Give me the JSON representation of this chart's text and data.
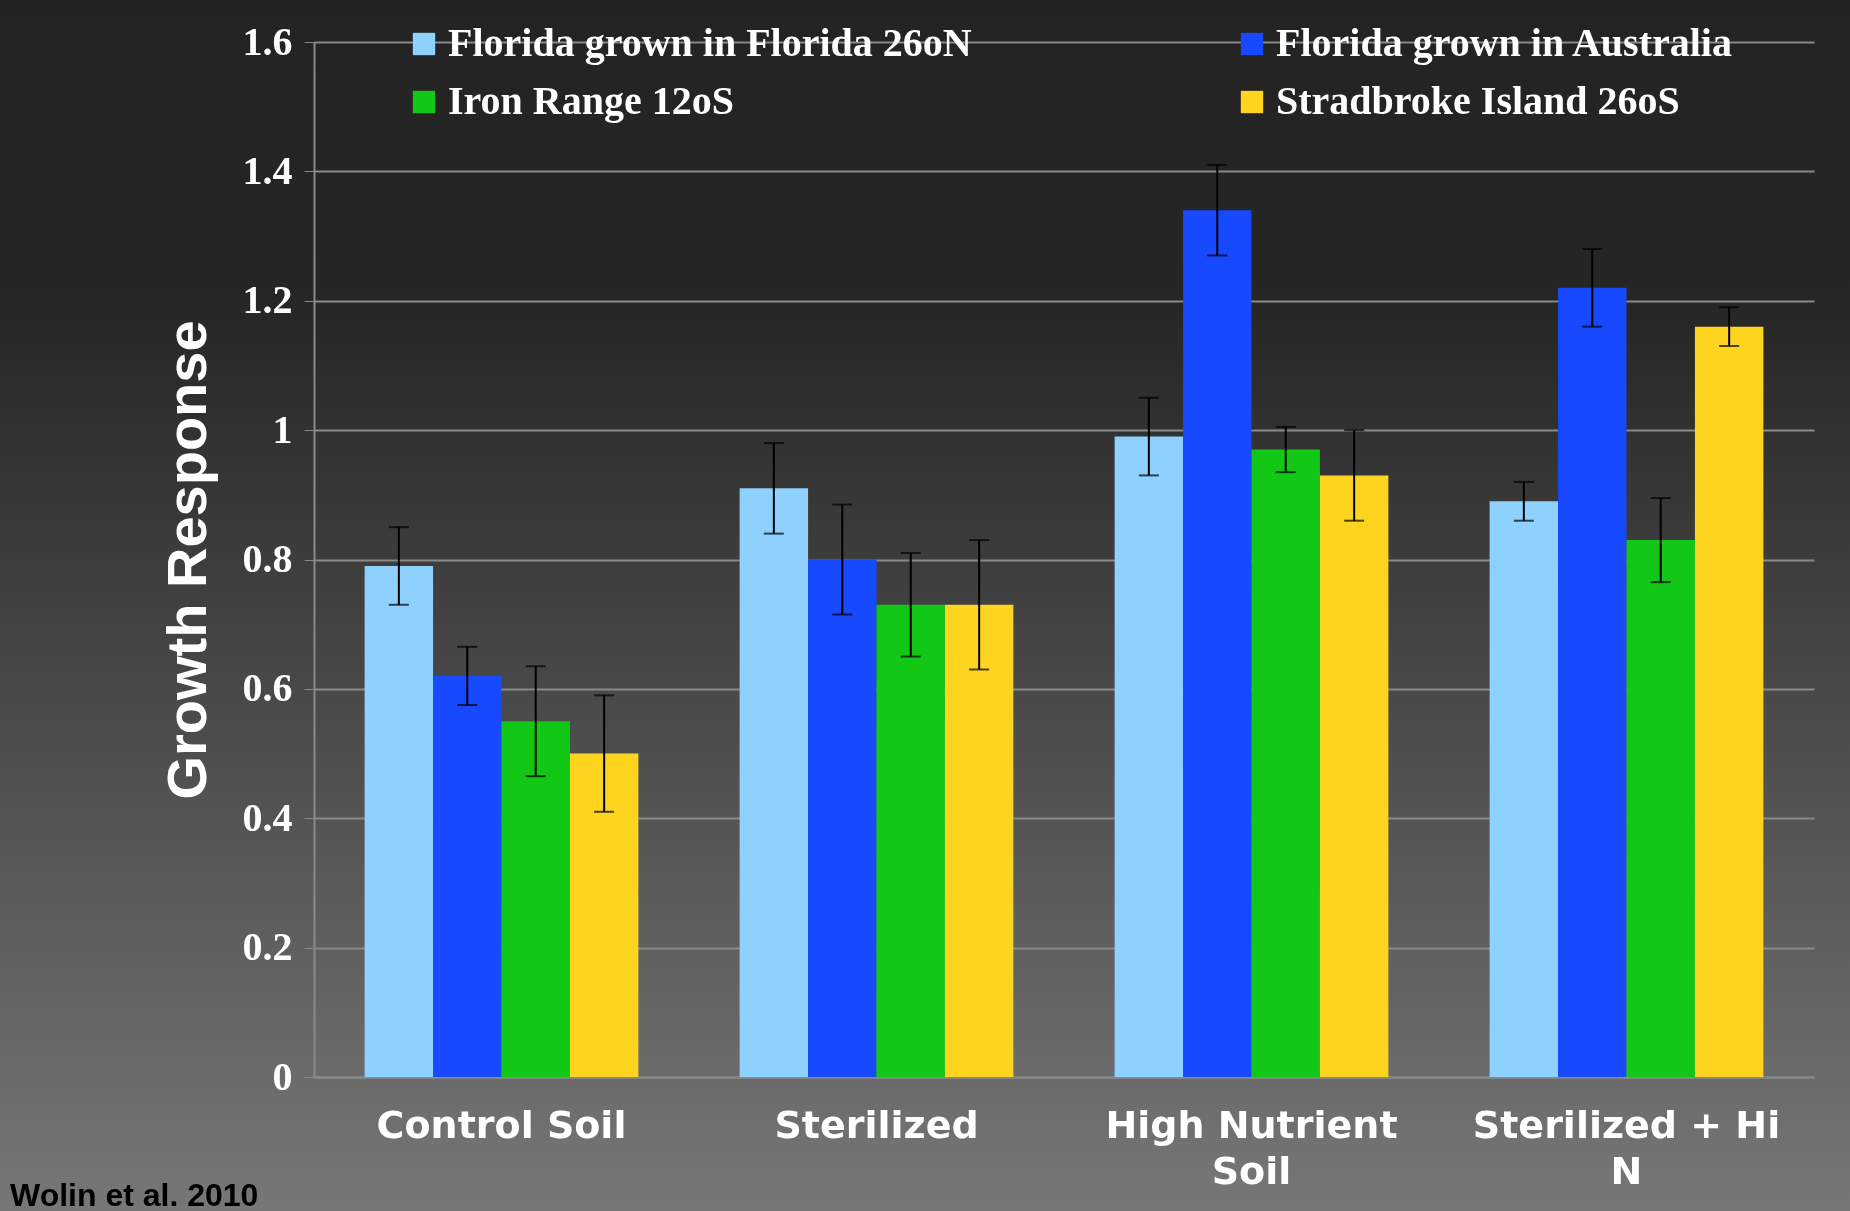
{
  "chart_data": {
    "type": "bar",
    "ylabel": "Growth Response",
    "categories": [
      "Control Soil",
      "Sterilized",
      "High Nutrient Soil",
      "Sterilized + Hi N"
    ],
    "series": [
      {
        "name": "Florida grown in Florida 26oN",
        "color": "#8ed1ff",
        "values": [
          0.79,
          0.91,
          0.99,
          0.89
        ],
        "errors": [
          0.06,
          0.07,
          0.06,
          0.03
        ]
      },
      {
        "name": "Florida grown in Australia",
        "color": "#1749ff",
        "values": [
          0.62,
          0.8,
          1.34,
          1.22
        ],
        "errors": [
          0.045,
          0.085,
          0.07,
          0.06
        ]
      },
      {
        "name": "Iron Range 12oS",
        "color": "#12c716",
        "values": [
          0.55,
          0.73,
          0.97,
          0.83
        ],
        "errors": [
          0.085,
          0.08,
          0.035,
          0.065
        ]
      },
      {
        "name": "Stradbroke Island 26oS",
        "color": "#ffd41f",
        "values": [
          0.5,
          0.73,
          0.93,
          1.16
        ],
        "errors": [
          0.09,
          0.1,
          0.07,
          0.03
        ]
      }
    ],
    "ylim": [
      0,
      1.6
    ],
    "yticks": [
      0,
      0.2,
      0.4,
      0.6,
      0.8,
      1,
      1.2,
      1.4,
      1.6
    ],
    "grid": "y",
    "legend": "top",
    "annotations": [
      "Wolin et al. 2010"
    ]
  }
}
